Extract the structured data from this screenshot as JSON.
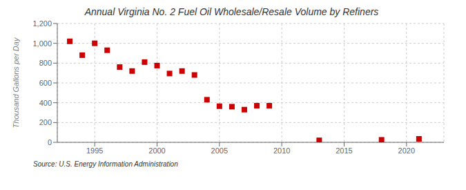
{
  "chart_data": {
    "type": "scatter",
    "title": "Annual Virginia No. 2 Fuel Oil Wholesale/Resale Volume by Refiners",
    "ylabel": "Thousand Gallons per Day",
    "annotations": [
      "Source: U.S. Energy Information Administration"
    ],
    "x": [
      1993,
      1994,
      1995,
      1996,
      1997,
      1998,
      1999,
      2000,
      2001,
      2002,
      2003,
      2004,
      2005,
      2006,
      2007,
      2008,
      2009,
      2013,
      2018,
      2021
    ],
    "values": [
      1020,
      880,
      1000,
      930,
      760,
      720,
      810,
      775,
      695,
      720,
      680,
      430,
      365,
      360,
      330,
      370,
      370,
      20,
      25,
      35
    ],
    "color": "#cc0000",
    "marker": "square",
    "xlim": [
      1992,
      2023
    ],
    "xticks": [
      1995,
      2000,
      2005,
      2010,
      2015,
      2020
    ],
    "ylim": [
      0,
      1200
    ],
    "yticks": [
      0,
      200,
      400,
      600,
      800,
      {
        "value": 1000,
        "label": "1,000"
      },
      {
        "value": 1200,
        "label": "1,200"
      }
    ],
    "grid": true
  }
}
